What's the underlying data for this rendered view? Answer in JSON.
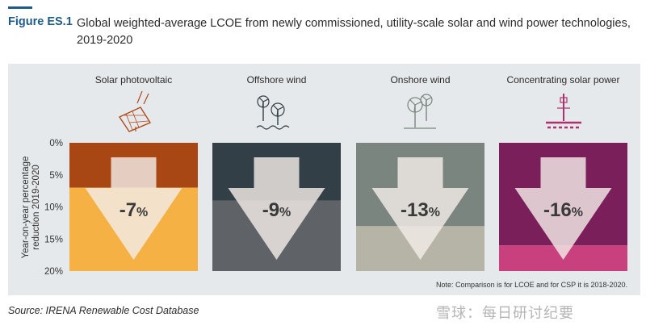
{
  "figure": {
    "label": "Figure ES.1",
    "title": "Global weighted-average LCOE from newly commissioned, utility-scale solar and wind power technologies, 2019-2020",
    "source": "Source: IRENA Renewable Cost Database",
    "note": "Note: Comparison is for LCOE and for CSP it is 2018-2020.",
    "watermark": "雪球：每日研讨纪要"
  },
  "chart_data": {
    "type": "bar",
    "title": "Global weighted-average LCOE from newly commissioned, utility-scale solar and wind power technologies, 2019-2020",
    "ylabel": "Year-on-year percentage reduction 2019-2020",
    "ylabel_lines": [
      "Year-on-year percentage",
      "reduction 2019-2020"
    ],
    "ylim": [
      0,
      20
    ],
    "y_inverted": true,
    "yticks": [
      0,
      5,
      10,
      15,
      20
    ],
    "ytick_labels": [
      "0%",
      "5%",
      "10%",
      "15%",
      "20%"
    ],
    "categories": [
      "Solar photovoltaic",
      "Offshore wind",
      "Onshore wind",
      "Concentrating solar power"
    ],
    "values": [
      7,
      9,
      13,
      16
    ],
    "data_labels": [
      "-7%",
      "-9%",
      "-13%",
      "-16%"
    ],
    "icons": [
      "solar-panel-icon",
      "offshore-wind-icon",
      "onshore-wind-icon",
      "csp-tower-icon"
    ],
    "colors": {
      "top": [
        "#a84614",
        "#333f46",
        "#7a8580",
        "#7a1f5a"
      ],
      "bottom": [
        "#f5b143",
        "#5f6367",
        "#b6b4a6",
        "#c9407f"
      ],
      "arrow": "#f3ece8",
      "panel": "#e6e9ec"
    }
  }
}
